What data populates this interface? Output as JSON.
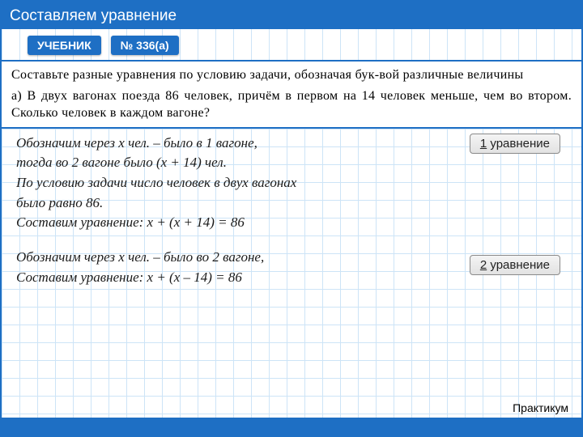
{
  "title": "Составляем уравнение",
  "badges": {
    "textbook": "УЧЕБНИК",
    "number": "№ 336(а)"
  },
  "problem": {
    "intro": "Составьте разные уравнения по условию задачи, обозначая бук-вой различные величины",
    "item_a": "а) В двух вагонах поезда 86 человек, причём в первом на 14 человек меньше, чем во втором. Сколько человек в каждом вагоне?"
  },
  "solution": {
    "block1": {
      "line1": "Обозначим через х чел. – было в 1 вагоне,",
      "line2": "тогда во 2 вагоне было  (х + 14) чел.",
      "line3": "По условию задачи  число человек в двух вагонах",
      "line4": "было равно 86.",
      "line5": "Составим уравнение: х + (х + 14) = 86"
    },
    "block2": {
      "line1": "Обозначим через х чел. – было во 2 вагоне,",
      "line2": "Составим уравнение: х + (х – 14) = 86"
    }
  },
  "eq_labels": {
    "eq1_num": "1",
    "eq1_text": " уравнение",
    "eq2_num": "2",
    "eq2_text": " уравнение"
  },
  "footer": {
    "label": "Практикум"
  },
  "colors": {
    "primary": "#1e6fc4",
    "grid": "#cde4f7",
    "text": "#000000",
    "solution_text": "#1a1a1a",
    "badge_bg": "#e2e2e2",
    "badge_border": "#8a8a8a"
  },
  "fonts": {
    "title_size": 19,
    "problem_size": 16,
    "solution_size": 17,
    "badge_size": 15
  }
}
